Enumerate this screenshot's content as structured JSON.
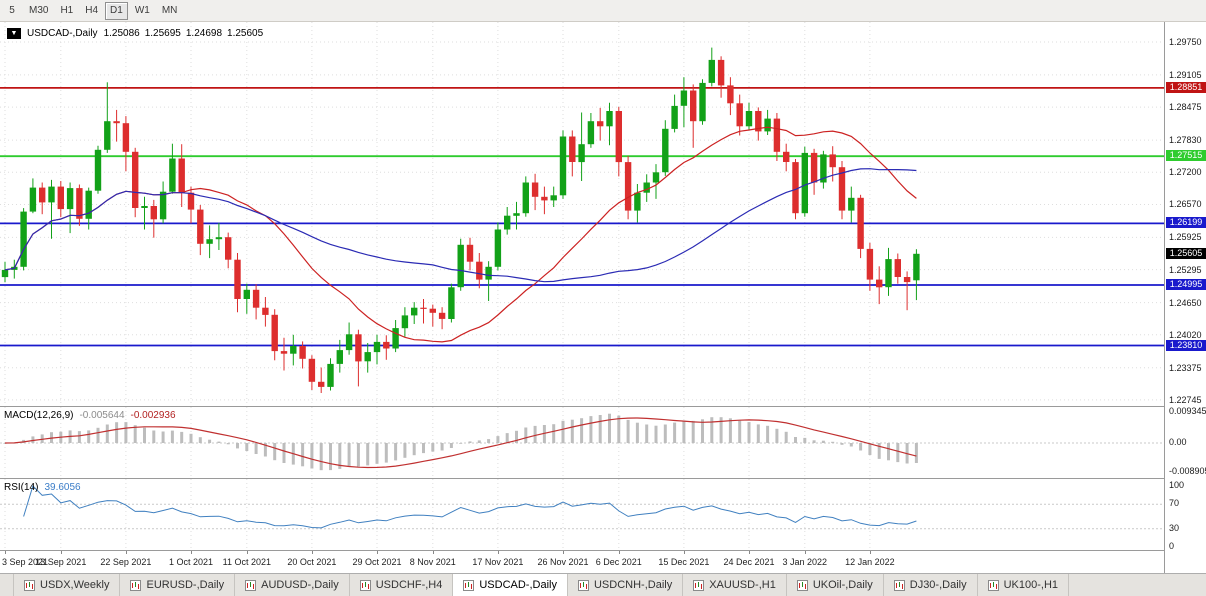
{
  "toolbar": {
    "timeframes": [
      {
        "label": "5",
        "active": false
      },
      {
        "label": "M30",
        "active": false
      },
      {
        "label": "H1",
        "active": false
      },
      {
        "label": "H4",
        "active": false
      },
      {
        "label": "D1",
        "active": true
      },
      {
        "label": "W1",
        "active": false
      },
      {
        "label": "MN",
        "active": false
      }
    ]
  },
  "chart_info": {
    "dropdown_icon": "▼"
  },
  "chart_data": {
    "type": "candlestick",
    "symbol_label": "USDCAD-,Daily",
    "ohlc": {
      "open": "1.25086",
      "high": "1.25695",
      "low": "1.24698",
      "close": "1.25605"
    },
    "y_ticks": [
      {
        "label": "1.29750",
        "value": 1.2975
      },
      {
        "label": "1.29105",
        "value": 1.29105
      },
      {
        "label": "1.28475",
        "value": 1.28475
      },
      {
        "label": "1.27830",
        "value": 1.2783
      },
      {
        "label": "1.27200",
        "value": 1.272
      },
      {
        "label": "1.26570",
        "value": 1.2657
      },
      {
        "label": "1.25925",
        "value": 1.25925
      },
      {
        "label": "1.25295",
        "value": 1.25295
      },
      {
        "label": "1.24650",
        "value": 1.2465
      },
      {
        "label": "1.24020",
        "value": 1.2402
      },
      {
        "label": "1.23375",
        "value": 1.23375
      },
      {
        "label": "1.22745",
        "value": 1.22745
      }
    ],
    "x_ticks": [
      {
        "index": 0,
        "label": "3 Sep 2021"
      },
      {
        "index": 6,
        "label": "13 Sep 2021"
      },
      {
        "index": 13,
        "label": "22 Sep 2021"
      },
      {
        "index": 20,
        "label": "1 Oct 2021"
      },
      {
        "index": 26,
        "label": "11 Oct 2021"
      },
      {
        "index": 33,
        "label": "20 Oct 2021"
      },
      {
        "index": 40,
        "label": "29 Oct 2021"
      },
      {
        "index": 46,
        "label": "8 Nov 2021"
      },
      {
        "index": 53,
        "label": "17 Nov 2021"
      },
      {
        "index": 60,
        "label": "26 Nov 2021"
      },
      {
        "index": 66,
        "label": "6 Dec 2021"
      },
      {
        "index": 73,
        "label": "15 Dec 2021"
      },
      {
        "index": 80,
        "label": "24 Dec 2021"
      },
      {
        "index": 86,
        "label": "3 Jan 2022"
      },
      {
        "index": 93,
        "label": "12 Jan 2022"
      }
    ],
    "levels": [
      {
        "label": "1.28851",
        "value": 1.28851,
        "color": "#c01414"
      },
      {
        "label": "1.27515",
        "value": 1.27515,
        "color": "#2ecc2e"
      },
      {
        "label": "1.26199",
        "value": 1.26199,
        "color": "#1919cc"
      },
      {
        "label": "1.24995",
        "value": 1.24995,
        "color": "#1919cc"
      },
      {
        "label": "1.23810",
        "value": 1.2381,
        "color": "#1919cc"
      }
    ],
    "current_price": {
      "label": "1.25605",
      "value": 1.25605,
      "bg": "#000000"
    },
    "candles": [
      [
        1.2515,
        1.2545,
        1.2505,
        1.2529
      ],
      [
        1.2529,
        1.2549,
        1.2512,
        1.2535
      ],
      [
        1.2535,
        1.265,
        1.2528,
        1.2643
      ],
      [
        1.2643,
        1.2708,
        1.264,
        1.269
      ],
      [
        1.269,
        1.27,
        1.2638,
        1.2661
      ],
      [
        1.2661,
        1.2705,
        1.259,
        1.2692
      ],
      [
        1.2692,
        1.2703,
        1.2632,
        1.2648
      ],
      [
        1.2648,
        1.27,
        1.2601,
        1.2689
      ],
      [
        1.2689,
        1.2696,
        1.2615,
        1.2629
      ],
      [
        1.2629,
        1.269,
        1.2608,
        1.2684
      ],
      [
        1.2684,
        1.2772,
        1.2678,
        1.2764
      ],
      [
        1.2764,
        1.2896,
        1.2758,
        1.282
      ],
      [
        1.282,
        1.2842,
        1.278,
        1.2816
      ],
      [
        1.2816,
        1.283,
        1.2722,
        1.276
      ],
      [
        1.276,
        1.2768,
        1.2632,
        1.265
      ],
      [
        1.265,
        1.2672,
        1.2608,
        1.2654
      ],
      [
        1.2654,
        1.2666,
        1.2592,
        1.2628
      ],
      [
        1.2628,
        1.2702,
        1.262,
        1.2682
      ],
      [
        1.2682,
        1.2776,
        1.2678,
        1.2747
      ],
      [
        1.2747,
        1.2775,
        1.2652,
        1.268
      ],
      [
        1.268,
        1.2692,
        1.262,
        1.2647
      ],
      [
        1.2647,
        1.2656,
        1.2558,
        1.258
      ],
      [
        1.258,
        1.2616,
        1.2552,
        1.2589
      ],
      [
        1.2589,
        1.2621,
        1.2568,
        1.2593
      ],
      [
        1.2593,
        1.2602,
        1.2532,
        1.2549
      ],
      [
        1.2549,
        1.2562,
        1.2446,
        1.2472
      ],
      [
        1.2472,
        1.2502,
        1.2443,
        1.249
      ],
      [
        1.249,
        1.2501,
        1.2432,
        1.2455
      ],
      [
        1.2455,
        1.2476,
        1.2418,
        1.2441
      ],
      [
        1.2441,
        1.2452,
        1.2352,
        1.237
      ],
      [
        1.237,
        1.2396,
        1.2332,
        1.2365
      ],
      [
        1.2365,
        1.2402,
        1.2342,
        1.238
      ],
      [
        1.238,
        1.2389,
        1.2336,
        1.2355
      ],
      [
        1.2355,
        1.2362,
        1.2294,
        1.231
      ],
      [
        1.231,
        1.2338,
        1.2288,
        1.23
      ],
      [
        1.23,
        1.2356,
        1.2293,
        1.2345
      ],
      [
        1.2345,
        1.2392,
        1.2328,
        1.2372
      ],
      [
        1.2372,
        1.2426,
        1.2363,
        1.2403
      ],
      [
        1.2403,
        1.2412,
        1.2301,
        1.235
      ],
      [
        1.235,
        1.2386,
        1.2328,
        1.2368
      ],
      [
        1.2368,
        1.2402,
        1.2344,
        1.2388
      ],
      [
        1.2388,
        1.2401,
        1.2353,
        1.2375
      ],
      [
        1.2375,
        1.2431,
        1.2368,
        1.2415
      ],
      [
        1.2415,
        1.2456,
        1.2398,
        1.244
      ],
      [
        1.244,
        1.2466,
        1.2423,
        1.2455
      ],
      [
        1.2455,
        1.2472,
        1.2424,
        1.2453
      ],
      [
        1.2453,
        1.2461,
        1.2418,
        1.2445
      ],
      [
        1.2445,
        1.2456,
        1.2413,
        1.2433
      ],
      [
        1.2433,
        1.2502,
        1.2426,
        1.2495
      ],
      [
        1.2495,
        1.259,
        1.2488,
        1.2578
      ],
      [
        1.2578,
        1.2592,
        1.2528,
        1.2545
      ],
      [
        1.2545,
        1.2562,
        1.2493,
        1.251
      ],
      [
        1.251,
        1.2546,
        1.2468,
        1.2535
      ],
      [
        1.2535,
        1.2622,
        1.2528,
        1.2608
      ],
      [
        1.2608,
        1.2652,
        1.2598,
        1.2635
      ],
      [
        1.2635,
        1.2662,
        1.2608,
        1.264
      ],
      [
        1.264,
        1.2712,
        1.2633,
        1.27
      ],
      [
        1.27,
        1.2717,
        1.2646,
        1.2672
      ],
      [
        1.2672,
        1.2692,
        1.2638,
        1.2665
      ],
      [
        1.2665,
        1.2692,
        1.2652,
        1.2675
      ],
      [
        1.2675,
        1.2802,
        1.2668,
        1.279
      ],
      [
        1.279,
        1.2802,
        1.2712,
        1.274
      ],
      [
        1.274,
        1.2837,
        1.2703,
        1.2775
      ],
      [
        1.2775,
        1.2836,
        1.2768,
        1.282
      ],
      [
        1.282,
        1.2846,
        1.2782,
        1.281
      ],
      [
        1.281,
        1.2856,
        1.2773,
        1.284
      ],
      [
        1.284,
        1.2848,
        1.2712,
        1.274
      ],
      [
        1.274,
        1.2752,
        1.2628,
        1.2645
      ],
      [
        1.2645,
        1.2697,
        1.2622,
        1.268
      ],
      [
        1.268,
        1.2716,
        1.2662,
        1.27
      ],
      [
        1.27,
        1.2736,
        1.2668,
        1.272
      ],
      [
        1.272,
        1.2822,
        1.2713,
        1.2805
      ],
      [
        1.2805,
        1.2872,
        1.2798,
        1.285
      ],
      [
        1.285,
        1.2906,
        1.2808,
        1.288
      ],
      [
        1.288,
        1.2892,
        1.2768,
        1.282
      ],
      [
        1.282,
        1.2902,
        1.2813,
        1.2895
      ],
      [
        1.2895,
        1.2964,
        1.2888,
        1.294
      ],
      [
        1.294,
        1.2947,
        1.2866,
        1.289
      ],
      [
        1.289,
        1.2906,
        1.2832,
        1.2855
      ],
      [
        1.2855,
        1.2872,
        1.2792,
        1.281
      ],
      [
        1.281,
        1.2856,
        1.2803,
        1.284
      ],
      [
        1.284,
        1.2847,
        1.2782,
        1.28
      ],
      [
        1.28,
        1.2842,
        1.2793,
        1.2825
      ],
      [
        1.2825,
        1.2836,
        1.2742,
        1.276
      ],
      [
        1.276,
        1.2776,
        1.2722,
        1.274
      ],
      [
        1.274,
        1.2746,
        1.2628,
        1.264
      ],
      [
        1.264,
        1.277,
        1.2633,
        1.2758
      ],
      [
        1.2758,
        1.2766,
        1.2676,
        1.27
      ],
      [
        1.27,
        1.2762,
        1.2688,
        1.2755
      ],
      [
        1.2755,
        1.2771,
        1.2702,
        1.273
      ],
      [
        1.273,
        1.2742,
        1.2628,
        1.2645
      ],
      [
        1.2645,
        1.2692,
        1.2622,
        1.267
      ],
      [
        1.267,
        1.2676,
        1.2552,
        1.257
      ],
      [
        1.257,
        1.2582,
        1.2488,
        1.251
      ],
      [
        1.251,
        1.2536,
        1.2462,
        1.2495
      ],
      [
        1.2495,
        1.2572,
        1.2478,
        1.255
      ],
      [
        1.255,
        1.2561,
        1.2502,
        1.2515
      ],
      [
        1.2515,
        1.2526,
        1.245,
        1.2505
      ],
      [
        1.25086,
        1.25695,
        1.24698,
        1.25605
      ]
    ],
    "indicators": {
      "ma_fast": {
        "period": 20
      },
      "ma_slow": {
        "period": 45
      },
      "macd": {
        "title": "MACD(12,26,9)",
        "main_value": "-0.005644",
        "signal_value": "-0.002936",
        "axis": [
          {
            "label": "0.009345",
            "value": 0.009345
          },
          {
            "label": "0.00",
            "value": 0
          },
          {
            "label": "-0.008905",
            "value": -0.008905
          }
        ]
      },
      "rsi": {
        "title": "RSI(14)",
        "value": "39.6056",
        "axis": [
          {
            "label": "100",
            "value": 100
          },
          {
            "label": "70",
            "value": 70
          },
          {
            "label": "30",
            "value": 30
          },
          {
            "label": "0",
            "value": 0
          }
        ],
        "guide_levels": [
          70,
          30
        ]
      }
    }
  },
  "tabs": [
    {
      "label": "USDX,Weekly",
      "active": false
    },
    {
      "label": "EURUSD-,Daily",
      "active": false
    },
    {
      "label": "AUDUSD-,Daily",
      "active": false
    },
    {
      "label": "USDCHF-,H4",
      "active": false
    },
    {
      "label": "USDCAD-,Daily",
      "active": true
    },
    {
      "label": "USDCNH-,Daily",
      "active": false
    },
    {
      "label": "XAUUSD-,H1",
      "active": false
    },
    {
      "label": "UKOil-,Daily",
      "active": false
    },
    {
      "label": "DJ30-,Daily",
      "active": false
    },
    {
      "label": "UK100-,H1",
      "active": false
    }
  ],
  "colors": {
    "bull": "#12a118",
    "bear": "#dd2e2e",
    "ma_fast": "#cc2222",
    "ma_slow": "#2b2bb4",
    "histogram": "#bdbdbd",
    "macd_signal": "#c03030",
    "rsi_line": "#4080c0",
    "grid": "#dedede",
    "guide_dash": "#c9c9c9",
    "current_label_bg": "#000000"
  }
}
